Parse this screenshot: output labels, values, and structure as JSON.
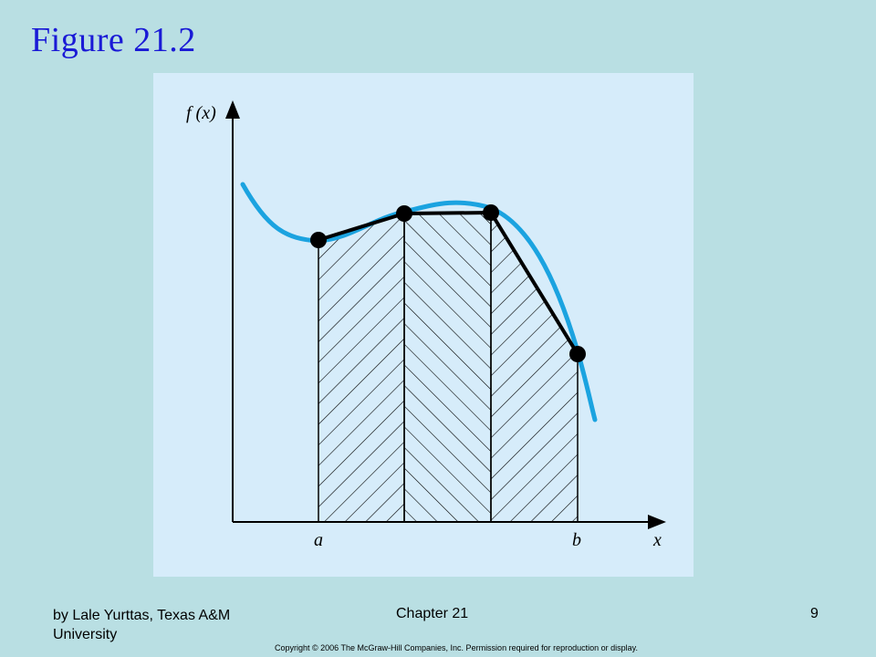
{
  "slide": {
    "title": "Figure 21.2"
  },
  "figure": {
    "y_axis_label": "f (x)",
    "x_axis_label": "x",
    "tick_a": "a",
    "tick_b": "b",
    "curve_color": "#1ba3e0",
    "background_color": "#d6ecfa"
  },
  "footer": {
    "author": "by Lale Yurttas, Texas A&M University",
    "chapter": "Chapter 21",
    "page": "9",
    "copyright": "Copyright © 2006 The McGraw-Hill Companies, Inc. Permission required for reproduction or display."
  }
}
